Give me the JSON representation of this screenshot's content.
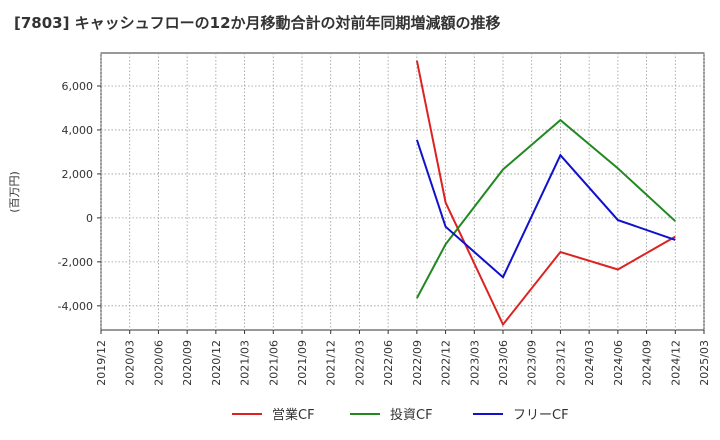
{
  "chart_data": {
    "type": "line",
    "title": "[7803]  キャッシュフローの12か月移動合計の対前年同期増減額の推移",
    "ylabel": "(百万円)",
    "xlabel": "",
    "ylim": [
      -5100,
      7500
    ],
    "yticks": [
      -4000,
      -2000,
      0,
      2000,
      4000,
      6000
    ],
    "ytick_labels": [
      "-4,000",
      "-2,000",
      "0",
      "2,000",
      "4,000",
      "6,000"
    ],
    "x_categories": [
      "2019/12",
      "2020/03",
      "2020/06",
      "2020/09",
      "2020/12",
      "2021/03",
      "2021/06",
      "2021/09",
      "2021/12",
      "2022/03",
      "2022/06",
      "2022/09",
      "2022/12",
      "2023/03",
      "2023/06",
      "2023/09",
      "2023/12",
      "2024/03",
      "2024/06",
      "2024/09",
      "2024/12",
      "2025/03"
    ],
    "grid": true,
    "legend_position": "bottom",
    "series": [
      {
        "name": "営業CF",
        "color": "#dd2222",
        "x": [
          "2022/09",
          "2022/12",
          "2023/06",
          "2023/12",
          "2024/06",
          "2024/12"
        ],
        "values": [
          7150,
          700,
          -4850,
          -1550,
          -2350,
          -850
        ]
      },
      {
        "name": "投資CF",
        "color": "#228822",
        "x": [
          "2022/09",
          "2022/12",
          "2023/06",
          "2023/12",
          "2024/06",
          "2024/12"
        ],
        "values": [
          -3650,
          -1200,
          2200,
          4450,
          2250,
          -150
        ]
      },
      {
        "name": "フリーCF",
        "color": "#1111cc",
        "x": [
          "2022/09",
          "2022/12",
          "2023/06",
          "2023/12",
          "2024/06",
          "2024/12"
        ],
        "values": [
          3550,
          -400,
          -2700,
          2850,
          -100,
          -1000
        ]
      }
    ]
  }
}
